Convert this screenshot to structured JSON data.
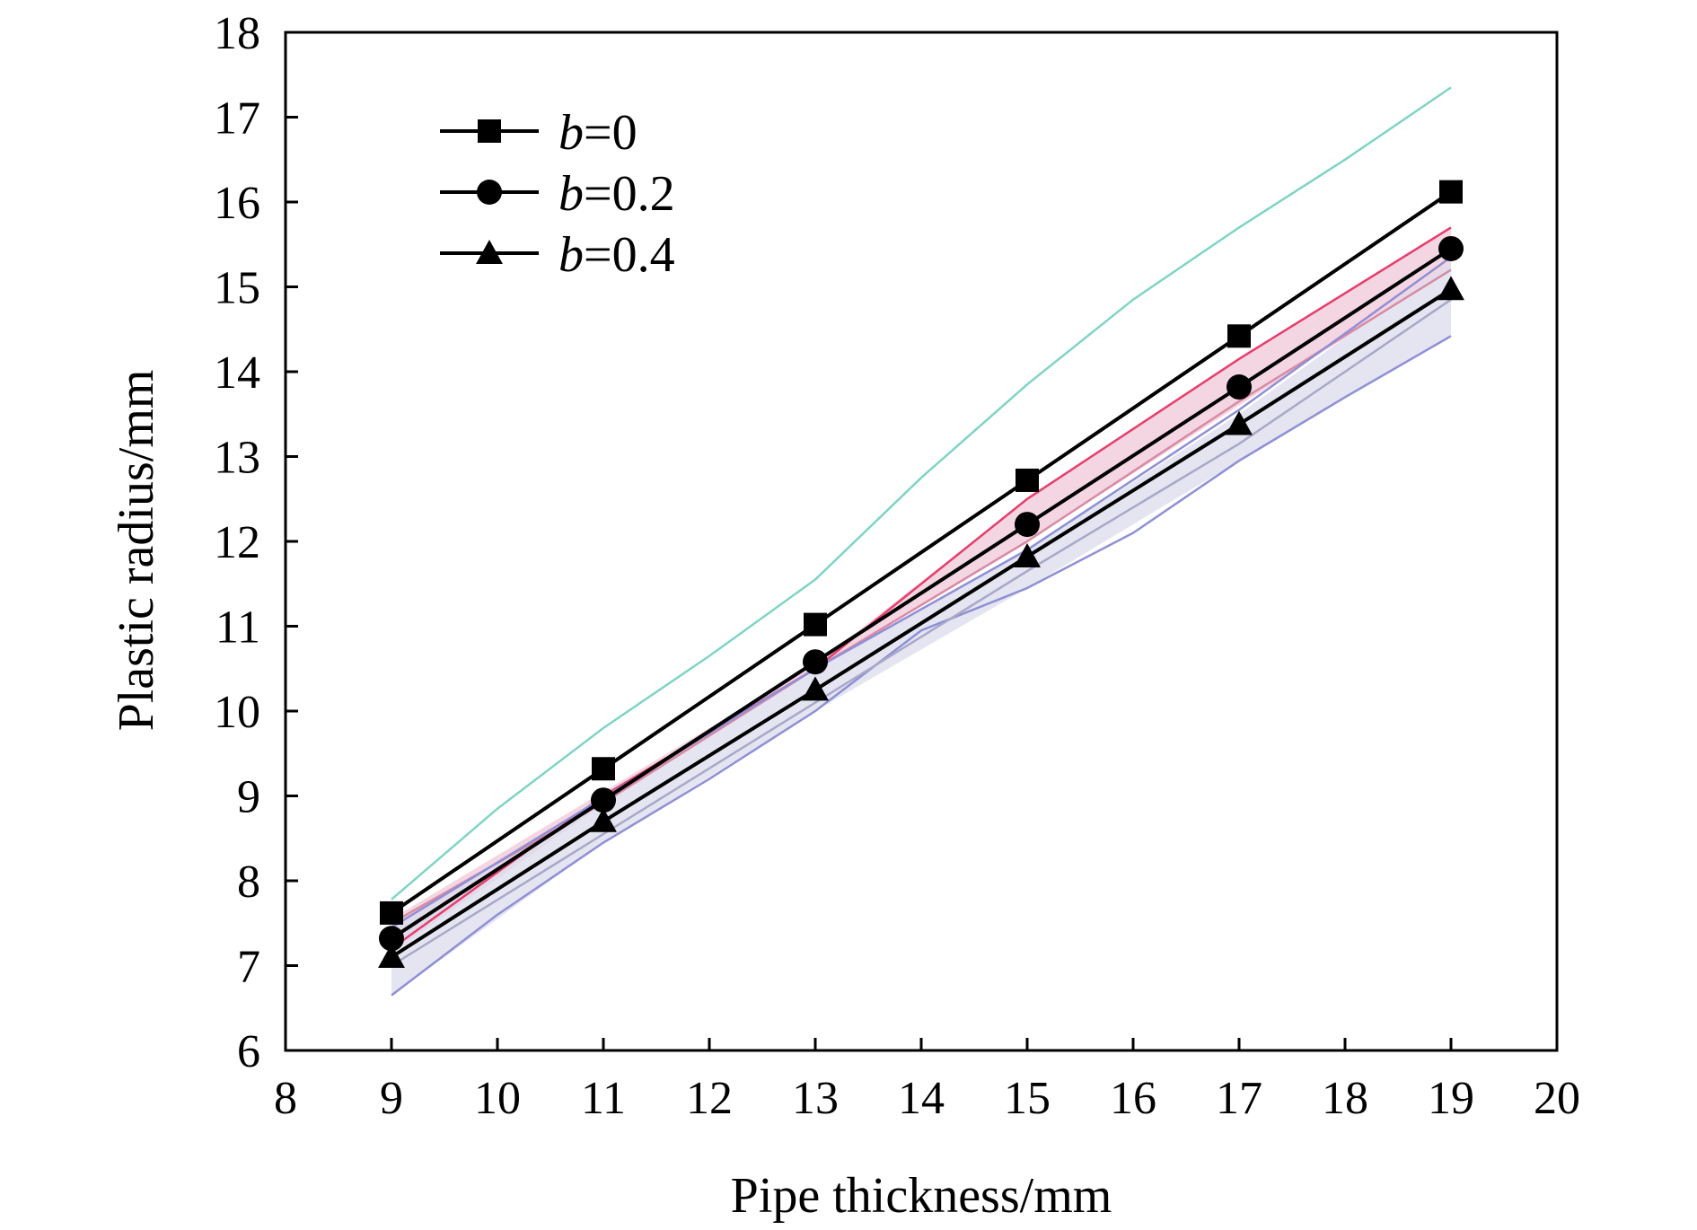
{
  "chart_data": {
    "type": "line",
    "xlabel": "Pipe thickness/mm",
    "ylabel": "Plastic radius/mm",
    "xlim": [
      8,
      20
    ],
    "ylim": [
      6,
      18
    ],
    "xticks": [
      "8",
      "9",
      "10",
      "11",
      "12",
      "13",
      "14",
      "15",
      "16",
      "17",
      "18",
      "19",
      "20"
    ],
    "yticks": [
      "6",
      "7",
      "8",
      "9",
      "10",
      "11",
      "12",
      "13",
      "14",
      "15",
      "16",
      "17",
      "18"
    ],
    "grid": false,
    "legend_position": "top-left",
    "x": [
      9,
      11,
      13,
      15,
      17,
      19
    ],
    "series": [
      {
        "name_var": "b",
        "name_rest": "=0",
        "marker": "square",
        "color": "#000000",
        "values": [
          7.62,
          9.32,
          11.02,
          12.72,
          14.42,
          16.12
        ]
      },
      {
        "name_var": "b",
        "name_rest": "=0.2",
        "marker": "circle",
        "color": "#000000",
        "values": [
          7.32,
          8.95,
          10.58,
          12.2,
          13.82,
          15.45
        ]
      },
      {
        "name_var": "b",
        "name_rest": "=0.4",
        "marker": "triangle",
        "color": "#000000",
        "values": [
          7.1,
          8.7,
          10.25,
          11.82,
          13.38,
          14.97
        ]
      }
    ],
    "bands": [
      {
        "fill": "#f0c8d8",
        "upper": [
          7.55,
          9.05,
          10.55,
          12.5,
          14.15,
          15.7
        ],
        "lower": [
          7.15,
          8.9,
          10.5,
          12.0,
          13.6,
          15.2
        ]
      },
      {
        "fill": "#dcdcec",
        "upper": [
          7.45,
          9.0,
          10.5,
          11.9,
          13.5,
          15.3
        ],
        "lower": [
          6.65,
          8.45,
          10.0,
          11.45,
          12.95,
          14.42
        ]
      }
    ],
    "envelope_lines": [
      {
        "color": "#7fd4c4",
        "x": [
          9,
          10,
          11,
          12,
          13,
          14,
          15,
          16,
          17,
          18,
          19
        ],
        "values": [
          7.78,
          8.85,
          9.8,
          10.65,
          11.55,
          12.75,
          13.85,
          14.85,
          15.7,
          16.5,
          17.35
        ]
      },
      {
        "color": "#e63e6d",
        "x": [
          9,
          11,
          13,
          15,
          17,
          19
        ],
        "values": [
          7.2,
          9.0,
          10.5,
          12.5,
          14.15,
          15.7
        ]
      },
      {
        "color": "#d88aa4",
        "x": [
          9,
          11,
          13,
          15,
          17,
          19
        ],
        "values": [
          7.5,
          8.92,
          10.5,
          12.0,
          13.65,
          15.2
        ]
      },
      {
        "color": "#8f8fd6",
        "x": [
          9,
          11,
          13,
          15,
          17,
          19
        ],
        "values": [
          7.45,
          8.98,
          10.5,
          11.9,
          13.55,
          15.35
        ]
      },
      {
        "color": "#8f8fd6",
        "x": [
          9,
          10,
          11,
          12,
          13,
          14,
          15,
          16,
          17,
          18,
          19
        ],
        "values": [
          6.65,
          7.6,
          8.45,
          9.2,
          10.0,
          10.95,
          11.45,
          12.1,
          12.95,
          13.7,
          14.42
        ]
      },
      {
        "color": "#a8a8c8",
        "x": [
          9,
          11,
          13,
          15,
          17,
          19
        ],
        "values": [
          7.0,
          8.55,
          10.1,
          11.65,
          13.15,
          14.85
        ]
      }
    ]
  }
}
